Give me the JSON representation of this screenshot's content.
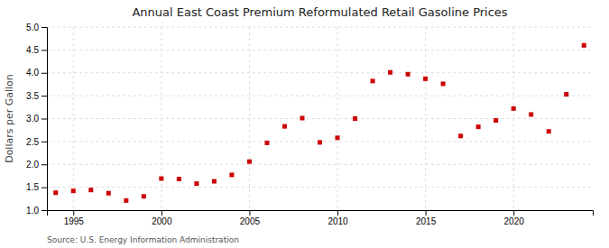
{
  "chart_data": {
    "type": "scatter",
    "title": "Annual East Coast Premium Reformulated Retail Gasoline Prices",
    "y_label": "Dollars per Gallon",
    "source": "Source: U.S. Energy Information Administration",
    "color": "#cc0000",
    "marker": "square",
    "grid": true,
    "xlim": [
      1993.5,
      2024.5
    ],
    "ylim": [
      1.0,
      5.0
    ],
    "xticks": [
      1995,
      2000,
      2005,
      2010,
      2015,
      2020
    ],
    "yticks": [
      {
        "value": 1.0,
        "label": "1.0"
      },
      {
        "value": 1.5,
        "label": "1.5"
      },
      {
        "value": 2.0,
        "label": "2.0"
      },
      {
        "value": 2.5,
        "label": "2.5"
      },
      {
        "value": 3.0,
        "label": "3.0"
      },
      {
        "value": 3.5,
        "label": "3.5"
      },
      {
        "value": 4.0,
        "label": "4.0"
      },
      {
        "value": 4.5,
        "label": "4.5"
      },
      {
        "value": 5.0,
        "label": "5.0"
      }
    ],
    "x": [
      1994,
      1995,
      1996,
      1997,
      1998,
      1999,
      2000,
      2001,
      2002,
      2003,
      2004,
      2005,
      2006,
      2007,
      2008,
      2009,
      2010,
      2011,
      2012,
      2013,
      2014,
      2015,
      2016,
      2017,
      2018,
      2019,
      2020,
      2021,
      2022,
      2023,
      2024
    ],
    "values": [
      1.38,
      1.42,
      1.44,
      1.37,
      1.21,
      1.3,
      1.69,
      1.68,
      1.58,
      1.63,
      1.77,
      2.06,
      2.47,
      2.83,
      3.01,
      2.48,
      2.58,
      3.0,
      3.82,
      4.01,
      3.97,
      3.87,
      3.76,
      2.62,
      2.82,
      2.96,
      3.22,
      3.09,
      2.72,
      3.53,
      4.6
    ]
  }
}
